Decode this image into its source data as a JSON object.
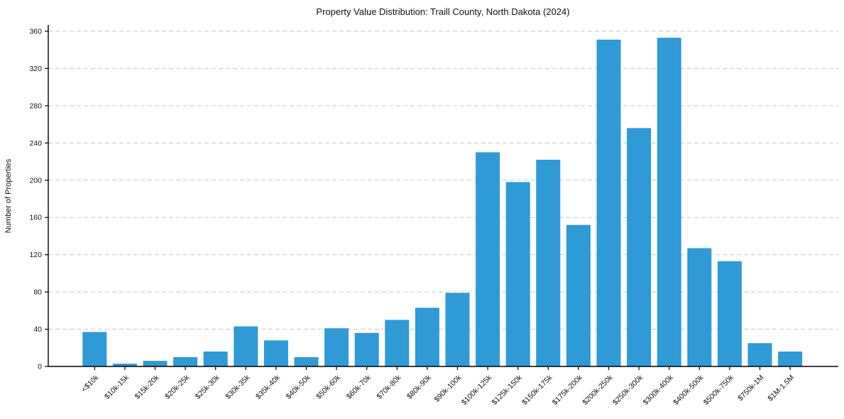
{
  "chart_data": {
    "type": "bar",
    "title": "Property Value Distribution: Traill County, North Dakota (2024)",
    "xlabel": "",
    "ylabel": "Number of Properties",
    "categories": [
      "<$10k",
      "$10k-15k",
      "$15k-20k",
      "$20k-25k",
      "$25k-30k",
      "$30k-35k",
      "$35k-40k",
      "$40k-50k",
      "$50k-60k",
      "$60k-70k",
      "$70k-80k",
      "$80k-90k",
      "$90k-100k",
      "$100k-125k",
      "$125k-150k",
      "$150k-175k",
      "$175k-200k",
      "$200k-250k",
      "$250k-300k",
      "$300k-400k",
      "$400k-500k",
      "$500k-750k",
      "$750k-1M",
      "$1M-1.5M"
    ],
    "values": [
      37,
      3,
      6,
      10,
      16,
      43,
      28,
      10,
      41,
      36,
      50,
      63,
      79,
      230,
      198,
      222,
      152,
      351,
      256,
      353,
      127,
      113,
      25,
      16
    ],
    "ylim": [
      0,
      367
    ],
    "yticks": [
      0,
      40,
      80,
      120,
      160,
      200,
      240,
      280,
      320,
      360
    ],
    "grid": "horizontal-dashed",
    "legend": "none",
    "bar_color": "#2e9ad6",
    "axis_color": "#000000",
    "gridline_color": "#c9c9c9",
    "background": "#ffffff"
  }
}
